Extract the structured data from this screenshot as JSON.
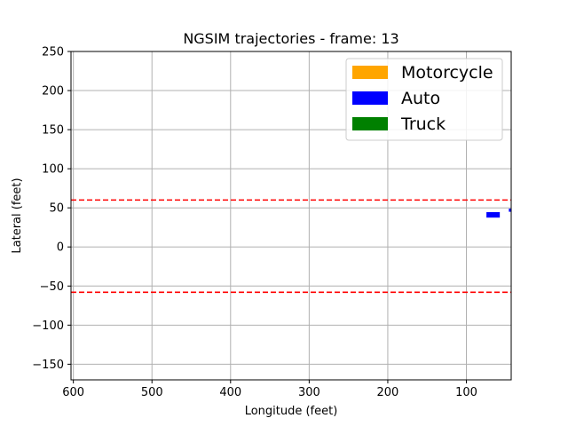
{
  "chart_data": {
    "type": "scatter",
    "title": "NGSIM trajectories - frame: 13",
    "xlabel": "Longitude (feet)",
    "ylabel": "Lateral (feet)",
    "xlim": [
      603,
      43
    ],
    "ylim": [
      -170,
      250
    ],
    "x_inverted": true,
    "xticks": [
      600,
      500,
      400,
      300,
      200,
      100
    ],
    "yticks": [
      250,
      200,
      150,
      100,
      50,
      0,
      -50,
      -100,
      -150
    ],
    "xtick_labels": [
      "600",
      "500",
      "400",
      "300",
      "200",
      "100"
    ],
    "ytick_labels": [
      "250",
      "200",
      "150",
      "100",
      "50",
      "0",
      "−50",
      "−100",
      "−150"
    ],
    "grid": true,
    "legend_placement": "top-right",
    "legend": [
      {
        "name": "Motorcycle",
        "color": "#ffa500"
      },
      {
        "name": "Auto",
        "color": "#0000ff"
      },
      {
        "name": "Truck",
        "color": "#008000"
      }
    ],
    "lane_boundaries": [
      {
        "y": 60,
        "color": "#ff0000",
        "style": "dashed"
      },
      {
        "y": -58,
        "color": "#ff0000",
        "style": "dashed"
      }
    ],
    "vehicles": [
      {
        "class": "Auto",
        "x": 66,
        "y": 41,
        "length": 17,
        "width": 7,
        "color": "#0000ff"
      },
      {
        "class": "Auto",
        "x": 44,
        "y": 47,
        "length": 4,
        "width": 4,
        "color": "#0000ff"
      }
    ]
  }
}
